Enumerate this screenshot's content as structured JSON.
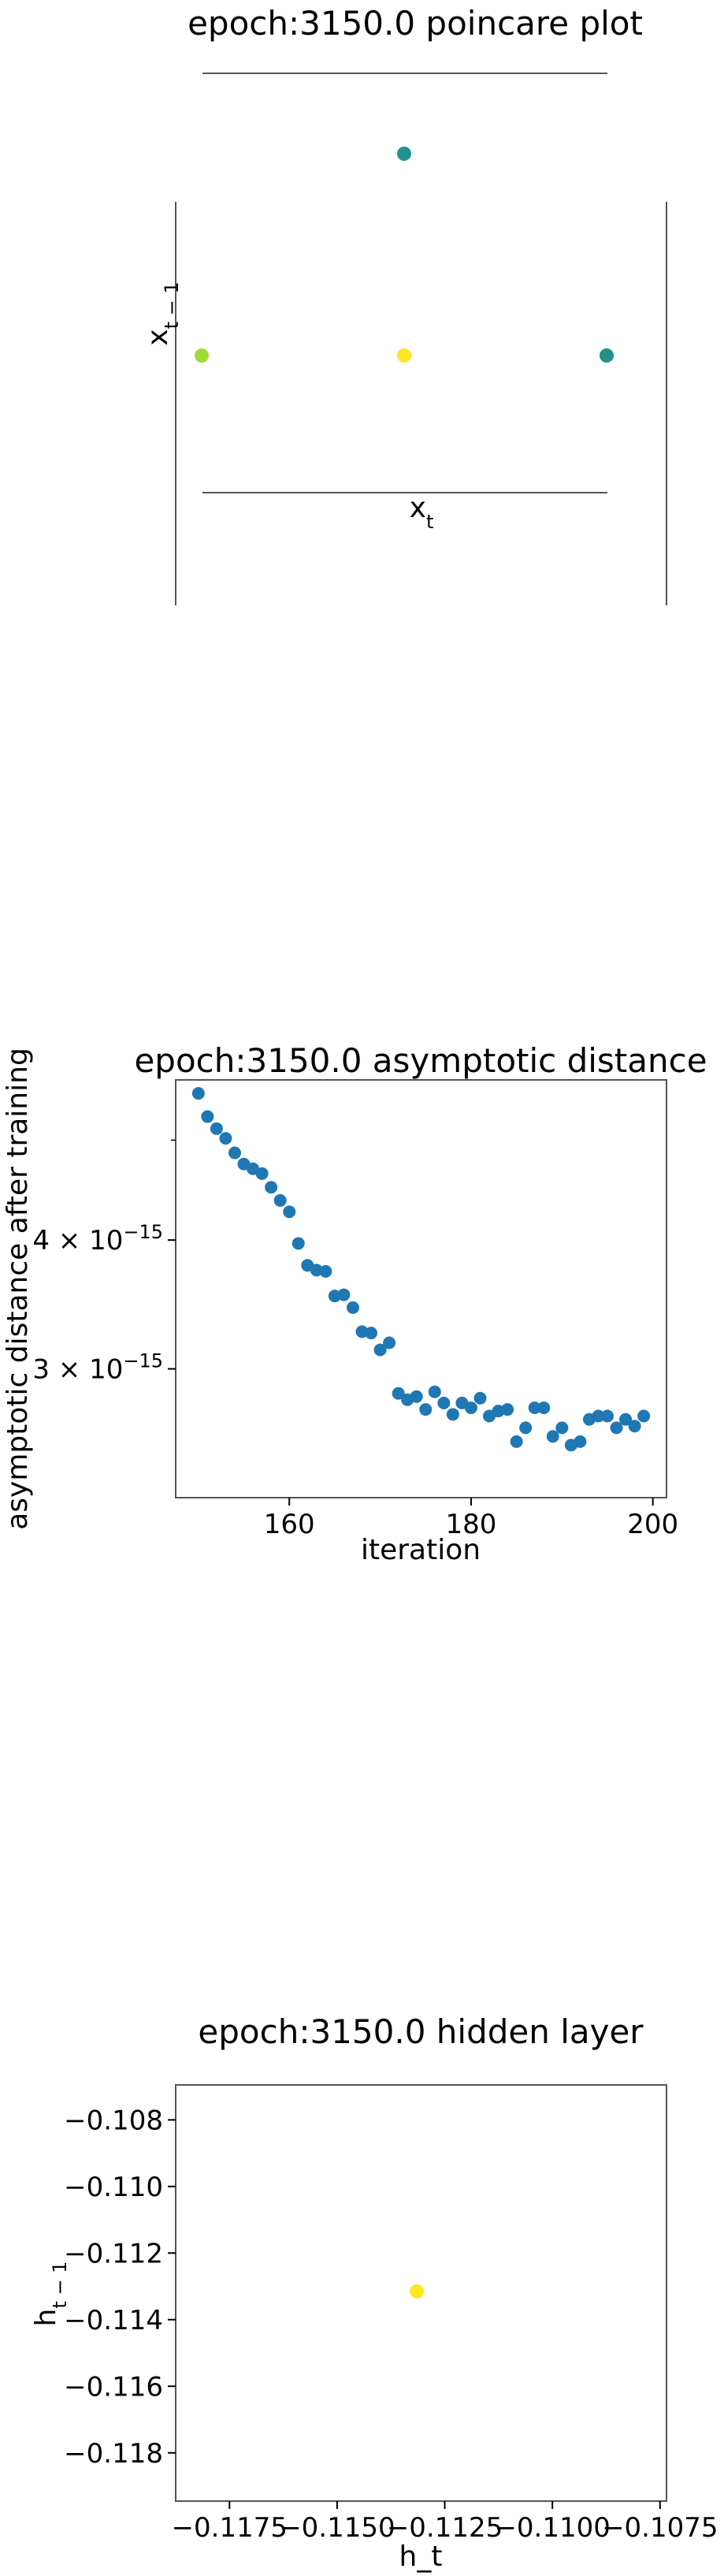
{
  "chart_data": [
    {
      "type": "scatter",
      "title": "epoch:3150.0 poincare plot",
      "xlabel": "x_t",
      "ylabel": "x_{t-1}",
      "points": [
        {
          "x": 0.0,
          "y": 1.0,
          "color": "#21918c"
        },
        {
          "x": -1.0,
          "y": 0.0,
          "color": "#a0da39"
        },
        {
          "x": 0.0,
          "y": 0.0,
          "color": "#fde725"
        },
        {
          "x": 1.0,
          "y": 0.0,
          "color": "#21918c"
        }
      ],
      "xlim": [
        -1,
        1
      ],
      "ylim": [
        -1,
        1
      ],
      "grid": false
    },
    {
      "type": "scatter",
      "title": "epoch:3150.0 asymptotic distance",
      "xlabel": "iteration",
      "ylabel": "asymptotic distance after training",
      "yscale": "log",
      "xticks": [
        "160",
        "180",
        "200"
      ],
      "yticks": [
        {
          "value": 4e-15,
          "base": "4 × 10",
          "exp": "−15"
        },
        {
          "value": 3e-15,
          "base": "3 × 10",
          "exp": "−15"
        }
      ],
      "xlim": [
        147.5,
        201.5
      ],
      "ylim": [
        2.25e-15,
        5.72e-15
      ],
      "color": "#1f77b4",
      "x": [
        150,
        151,
        152,
        153,
        154,
        155,
        156,
        157,
        158,
        159,
        160,
        161,
        162,
        163,
        164,
        165,
        166,
        167,
        168,
        169,
        170,
        171,
        172,
        173,
        174,
        175,
        176,
        177,
        178,
        179,
        180,
        181,
        182,
        183,
        184,
        185,
        186,
        187,
        188,
        189,
        190,
        191,
        192,
        193,
        194,
        195,
        196,
        197,
        198,
        199
      ],
      "y": [
        5.55e-15,
        5.27e-15,
        5.13e-15,
        5.02e-15,
        4.86e-15,
        4.74e-15,
        4.69e-15,
        4.64e-15,
        4.5e-15,
        4.37e-15,
        4.26e-15,
        3.97e-15,
        3.78e-15,
        3.74e-15,
        3.73e-15,
        3.53e-15,
        3.54e-15,
        3.44e-15,
        3.26e-15,
        3.25e-15,
        3.13e-15,
        3.18e-15,
        2.84e-15,
        2.8e-15,
        2.82e-15,
        2.74e-15,
        2.85e-15,
        2.78e-15,
        2.71e-15,
        2.78e-15,
        2.75e-15,
        2.81e-15,
        2.7e-15,
        2.73e-15,
        2.74e-15,
        2.55e-15,
        2.63e-15,
        2.75e-15,
        2.75e-15,
        2.58e-15,
        2.63e-15,
        2.53e-15,
        2.55e-15,
        2.68e-15,
        2.7e-15,
        2.7e-15,
        2.63e-15,
        2.68e-15,
        2.64e-15,
        2.7e-15
      ]
    },
    {
      "type": "scatter",
      "title": "epoch:3150.0 hidden layer",
      "xlabel": "h_t",
      "ylabel": "h_{t-1}",
      "xticks": [
        "−0.1175",
        "−0.1150",
        "−0.1125",
        "−0.1100",
        "−0.1075"
      ],
      "yticks": [
        "−0.108",
        "−0.110",
        "−0.112",
        "−0.114",
        "−0.116",
        "−0.118"
      ],
      "xlim": [
        -0.11875,
        -0.10735
      ],
      "ylim": [
        -0.11945,
        -0.10695
      ],
      "points": [
        {
          "x": -0.11315,
          "y": -0.11315,
          "color": "#fde725"
        }
      ]
    }
  ]
}
